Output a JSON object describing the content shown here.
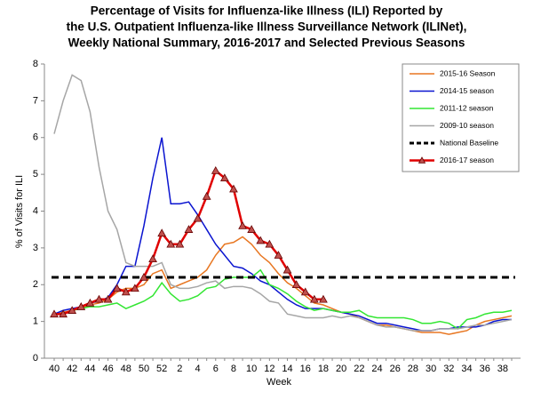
{
  "chart_data": {
    "type": "line",
    "title": [
      "Percentage of Visits for Influenza-like Illness (ILI) Reported by",
      "the U.S. Outpatient Influenza-like Illness Surveillance Network (ILINet),",
      "Weekly National Summary, 2016-2017 and Selected Previous Seasons"
    ],
    "x_label": "Week",
    "y_label": "% of Visits for ILI",
    "categories": [
      "40",
      null,
      "42",
      null,
      "44",
      null,
      "46",
      null,
      "48",
      null,
      "50",
      null,
      "52",
      null,
      "2",
      null,
      "4",
      null,
      "6",
      null,
      "8",
      null,
      "10",
      null,
      "12",
      null,
      "14",
      null,
      "16",
      null,
      "18",
      null,
      "20",
      null,
      "22",
      null,
      "24",
      null,
      "26",
      null,
      "28",
      null,
      "30",
      null,
      "32",
      null,
      "34",
      null,
      "36",
      null,
      "38",
      null
    ],
    "ylim": [
      0,
      8
    ],
    "yticks": [
      0,
      1,
      2,
      3,
      4,
      5,
      6,
      7,
      8
    ],
    "legend": "upper right",
    "series": [
      {
        "name": "2015-16 Season",
        "color": "#e87722",
        "values": [
          1.2,
          1.25,
          1.3,
          1.35,
          1.45,
          1.5,
          1.6,
          1.8,
          1.9,
          1.9,
          2.0,
          2.3,
          2.4,
          1.9,
          2.0,
          2.1,
          2.2,
          2.4,
          2.8,
          3.1,
          3.15,
          3.3,
          3.1,
          2.8,
          2.6,
          2.3,
          2.05,
          1.9,
          1.7,
          1.5,
          1.45,
          1.35,
          1.25,
          1.2,
          1.1,
          1.0,
          0.9,
          0.9,
          0.85,
          0.8,
          0.75,
          0.7,
          0.7,
          0.7,
          0.65,
          0.7,
          0.75,
          0.9,
          1.0,
          1.05,
          1.1,
          1.15
        ]
      },
      {
        "name": "2014-15 season",
        "color": "#0a14d0",
        "values": [
          1.2,
          1.3,
          1.35,
          1.4,
          1.5,
          1.55,
          1.65,
          2.0,
          2.5,
          2.5,
          3.6,
          4.9,
          6.0,
          4.2,
          4.2,
          4.25,
          3.9,
          3.5,
          3.1,
          2.8,
          2.5,
          2.45,
          2.3,
          2.1,
          2.0,
          1.8,
          1.6,
          1.45,
          1.35,
          1.35,
          1.35,
          1.3,
          1.25,
          1.2,
          1.15,
          1.05,
          0.95,
          0.95,
          0.9,
          0.85,
          0.8,
          0.75,
          0.75,
          0.8,
          0.8,
          0.85,
          0.85,
          0.85,
          0.9,
          1.0,
          1.05,
          1.05
        ]
      },
      {
        "name": "2011-12 season",
        "color": "#33e633",
        "values": [
          1.2,
          1.2,
          1.3,
          1.35,
          1.4,
          1.4,
          1.45,
          1.5,
          1.35,
          1.45,
          1.55,
          1.7,
          2.05,
          1.75,
          1.55,
          1.6,
          1.7,
          1.9,
          1.95,
          2.15,
          2.2,
          2.2,
          2.2,
          2.4,
          2.0,
          1.9,
          1.75,
          1.55,
          1.4,
          1.3,
          1.35,
          1.3,
          1.25,
          1.25,
          1.3,
          1.15,
          1.1,
          1.1,
          1.1,
          1.1,
          1.05,
          0.95,
          0.95,
          1.0,
          0.95,
          0.8,
          1.05,
          1.1,
          1.2,
          1.25,
          1.25,
          1.3
        ]
      },
      {
        "name": "2009-10 season",
        "color": "#a6a6a6",
        "values": [
          6.1,
          7.0,
          7.7,
          7.55,
          6.7,
          5.2,
          4.0,
          3.5,
          2.6,
          2.5,
          2.5,
          2.5,
          2.6,
          2.0,
          1.9,
          1.9,
          1.95,
          2.05,
          2.1,
          1.9,
          1.95,
          1.95,
          1.9,
          1.75,
          1.55,
          1.5,
          1.2,
          1.15,
          1.1,
          1.1,
          1.1,
          1.15,
          1.1,
          1.15,
          1.1,
          1.0,
          0.9,
          0.85,
          0.85,
          0.8,
          0.75,
          0.75,
          0.75,
          0.8,
          0.8,
          0.8,
          0.85,
          0.9,
          0.9,
          0.95,
          1.0,
          1.05
        ]
      },
      {
        "name": "National Baseline",
        "color": "#000000",
        "value": 2.2,
        "style": "dashed"
      },
      {
        "name": "2016-17 season",
        "color": "#e00000",
        "marker": "triangle",
        "values": [
          1.2,
          1.2,
          1.3,
          1.4,
          1.5,
          1.6,
          1.6,
          1.9,
          1.8,
          1.9,
          2.2,
          2.7,
          3.4,
          3.1,
          3.1,
          3.5,
          3.8,
          4.4,
          5.1,
          4.9,
          4.6,
          3.6,
          3.5,
          3.2,
          3.1,
          2.8,
          2.4,
          2.0,
          1.8,
          1.6,
          1.6,
          null,
          null,
          null,
          null,
          null,
          null,
          null,
          null,
          null,
          null,
          null,
          null,
          null,
          null,
          null,
          null,
          null,
          null,
          null,
          null,
          null
        ]
      }
    ]
  }
}
